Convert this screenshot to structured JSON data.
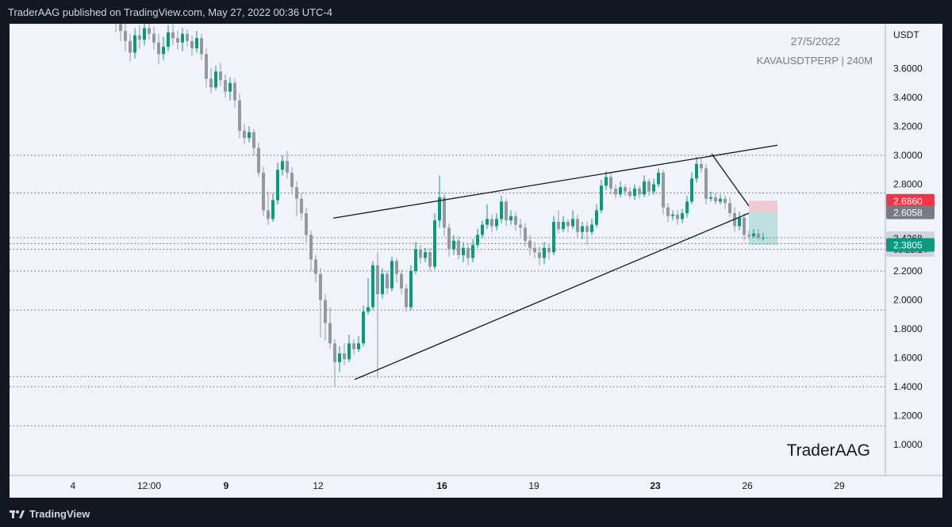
{
  "header": {
    "attribution": "TraderAAG published on TradingView.com, May 27, 2022 00:36 UTC-4"
  },
  "footer": {
    "brand": "TradingView"
  },
  "chart_data": {
    "type": "candlestick",
    "symbol_line": "KAVAUSDTPERP | 240M",
    "date_label": "27/5/2022",
    "watermark": "TraderAAG",
    "currency": "USDT",
    "ylim": [
      0.82,
      3.9
    ],
    "y_ticks": [
      "1.0000",
      "1.2000",
      "1.4000",
      "1.6000",
      "1.8000",
      "2.0000",
      "2.2000",
      "2.4000",
      "2.6000",
      "2.8000",
      "3.0000",
      "3.2000",
      "3.4000",
      "3.6000"
    ],
    "x_ticks": [
      "4",
      "12:00",
      "9",
      "12",
      "16",
      "19",
      "23",
      "26",
      "29"
    ],
    "x_ticks_bold": [
      "9",
      "16",
      "23"
    ],
    "price_labels": [
      {
        "value": 2.686,
        "text": "2.6860",
        "bg": "#f23645",
        "fg": "#ffffff"
      },
      {
        "value": 2.6058,
        "text": "2.6058",
        "bg": "#787b86",
        "fg": "#ffffff"
      },
      {
        "value": 2.4268,
        "text": "2.4268",
        "sub": "03:23:14",
        "bg": "#d1d4dc",
        "fg": "#131722"
      },
      {
        "value": 2.3805,
        "text": "2.3805",
        "bg": "#089981",
        "fg": "#ffffff"
      }
    ],
    "horizontal_levels": [
      3.0,
      2.74,
      2.43,
      2.39,
      2.35,
      2.2,
      1.93,
      1.47,
      1.4,
      1.13
    ],
    "candles": [
      [
        3.98,
        3.91,
        4.05,
        3.85
      ],
      [
        3.91,
        3.86,
        3.97,
        3.79
      ],
      [
        3.86,
        3.79,
        3.93,
        3.72
      ],
      [
        3.79,
        3.71,
        3.84,
        3.65
      ],
      [
        3.71,
        3.83,
        3.88,
        3.67
      ],
      [
        3.83,
        3.8,
        3.9,
        3.74
      ],
      [
        3.8,
        3.88,
        3.95,
        3.76
      ],
      [
        3.88,
        3.84,
        3.92,
        3.8
      ],
      [
        3.84,
        3.78,
        3.89,
        3.73
      ],
      [
        3.78,
        3.7,
        3.84,
        3.63
      ],
      [
        3.7,
        3.75,
        3.82,
        3.66
      ],
      [
        3.75,
        3.85,
        3.9,
        3.72
      ],
      [
        3.85,
        3.81,
        3.91,
        3.76
      ],
      [
        3.81,
        3.78,
        3.86,
        3.73
      ],
      [
        3.78,
        3.84,
        3.88,
        3.72
      ],
      [
        3.84,
        3.79,
        3.87,
        3.75
      ],
      [
        3.79,
        3.74,
        3.83,
        3.69
      ],
      [
        3.74,
        3.81,
        3.86,
        3.71
      ],
      [
        3.81,
        3.7,
        3.84,
        3.66
      ],
      [
        3.7,
        3.53,
        3.74,
        3.47
      ],
      [
        3.53,
        3.47,
        3.6,
        3.43
      ],
      [
        3.47,
        3.58,
        3.62,
        3.45
      ],
      [
        3.58,
        3.52,
        3.64,
        3.48
      ],
      [
        3.52,
        3.44,
        3.56,
        3.4
      ],
      [
        3.44,
        3.5,
        3.54,
        3.38
      ],
      [
        3.5,
        3.38,
        3.53,
        3.33
      ],
      [
        3.38,
        3.17,
        3.43,
        3.12
      ],
      [
        3.17,
        3.12,
        3.22,
        3.08
      ],
      [
        3.12,
        3.16,
        3.2,
        3.09
      ],
      [
        3.16,
        3.05,
        3.18,
        3.0
      ],
      [
        3.05,
        2.88,
        3.09,
        2.85
      ],
      [
        2.88,
        2.62,
        2.92,
        2.58
      ],
      [
        2.62,
        2.56,
        2.75,
        2.52
      ],
      [
        2.56,
        2.69,
        2.74,
        2.54
      ],
      [
        2.69,
        2.9,
        2.95,
        2.66
      ],
      [
        2.9,
        2.96,
        3.0,
        2.86
      ],
      [
        2.96,
        2.88,
        3.03,
        2.84
      ],
      [
        2.88,
        2.78,
        2.92,
        2.73
      ],
      [
        2.78,
        2.7,
        2.82,
        2.58
      ],
      [
        2.7,
        2.6,
        2.74,
        2.55
      ],
      [
        2.6,
        2.45,
        2.64,
        2.4
      ],
      [
        2.45,
        2.28,
        2.48,
        2.2
      ],
      [
        2.28,
        2.18,
        2.31,
        2.12
      ],
      [
        2.18,
        2.0,
        2.22,
        1.74
      ],
      [
        2.0,
        1.84,
        2.04,
        1.72
      ],
      [
        1.84,
        1.7,
        1.95,
        1.66
      ],
      [
        1.7,
        1.57,
        1.73,
        1.4
      ],
      [
        1.57,
        1.63,
        1.68,
        1.5
      ],
      [
        1.63,
        1.59,
        1.7,
        1.55
      ],
      [
        1.59,
        1.7,
        1.76,
        1.57
      ],
      [
        1.7,
        1.66,
        1.73,
        1.62
      ],
      [
        1.66,
        1.7,
        1.75,
        1.64
      ],
      [
        1.7,
        1.92,
        1.96,
        1.68
      ],
      [
        1.92,
        1.95,
        2.15,
        1.9
      ],
      [
        1.95,
        2.24,
        2.27,
        1.93
      ],
      [
        2.24,
        2.04,
        2.33,
        1.46
      ],
      [
        2.04,
        2.18,
        2.22,
        2.01
      ],
      [
        2.18,
        2.08,
        2.2,
        2.04
      ],
      [
        2.08,
        2.27,
        2.3,
        2.06
      ],
      [
        2.27,
        2.18,
        2.29,
        2.12
      ],
      [
        2.18,
        2.08,
        2.21,
        2.04
      ],
      [
        2.08,
        1.95,
        2.11,
        1.92
      ],
      [
        1.95,
        2.2,
        2.24,
        1.93
      ],
      [
        2.2,
        2.35,
        2.4,
        2.18
      ],
      [
        2.35,
        2.29,
        2.38,
        2.25
      ],
      [
        2.29,
        2.33,
        2.36,
        2.26
      ],
      [
        2.33,
        2.23,
        2.36,
        2.2
      ],
      [
        2.23,
        2.55,
        2.6,
        2.21
      ],
      [
        2.55,
        2.71,
        2.86,
        2.5
      ],
      [
        2.71,
        2.5,
        2.74,
        2.44
      ],
      [
        2.5,
        2.35,
        2.53,
        2.3
      ],
      [
        2.35,
        2.41,
        2.45,
        2.31
      ],
      [
        2.41,
        2.31,
        2.44,
        2.28
      ],
      [
        2.31,
        2.36,
        2.4,
        2.26
      ],
      [
        2.36,
        2.29,
        2.39,
        2.24
      ],
      [
        2.29,
        2.38,
        2.42,
        2.26
      ],
      [
        2.38,
        2.45,
        2.49,
        2.36
      ],
      [
        2.45,
        2.52,
        2.55,
        2.43
      ],
      [
        2.52,
        2.56,
        2.66,
        2.49
      ],
      [
        2.56,
        2.51,
        2.59,
        2.47
      ],
      [
        2.51,
        2.56,
        2.6,
        2.48
      ],
      [
        2.56,
        2.68,
        2.72,
        2.53
      ],
      [
        2.68,
        2.55,
        2.7,
        2.51
      ],
      [
        2.55,
        2.58,
        2.62,
        2.52
      ],
      [
        2.58,
        2.52,
        2.61,
        2.48
      ],
      [
        2.52,
        2.5,
        2.56,
        2.44
      ],
      [
        2.5,
        2.41,
        2.53,
        2.37
      ],
      [
        2.41,
        2.36,
        2.45,
        2.31
      ],
      [
        2.36,
        2.33,
        2.4,
        2.29
      ],
      [
        2.33,
        2.29,
        2.37,
        2.24
      ],
      [
        2.29,
        2.36,
        2.4,
        2.25
      ],
      [
        2.36,
        2.33,
        2.39,
        2.28
      ],
      [
        2.33,
        2.54,
        2.58,
        2.31
      ],
      [
        2.54,
        2.49,
        2.62,
        2.46
      ],
      [
        2.49,
        2.54,
        2.58,
        2.47
      ],
      [
        2.54,
        2.51,
        2.56,
        2.47
      ],
      [
        2.51,
        2.56,
        2.62,
        2.49
      ],
      [
        2.56,
        2.47,
        2.59,
        2.43
      ],
      [
        2.47,
        2.51,
        2.54,
        2.42
      ],
      [
        2.51,
        2.47,
        2.54,
        2.38
      ],
      [
        2.47,
        2.52,
        2.56,
        2.45
      ],
      [
        2.52,
        2.62,
        2.66,
        2.5
      ],
      [
        2.62,
        2.79,
        2.83,
        2.6
      ],
      [
        2.79,
        2.85,
        2.89,
        2.76
      ],
      [
        2.85,
        2.77,
        2.88,
        2.73
      ],
      [
        2.77,
        2.73,
        2.8,
        2.7
      ],
      [
        2.73,
        2.78,
        2.82,
        2.71
      ],
      [
        2.78,
        2.75,
        2.8,
        2.72
      ],
      [
        2.75,
        2.72,
        2.78,
        2.7
      ],
      [
        2.72,
        2.77,
        2.8,
        2.69
      ],
      [
        2.77,
        2.73,
        2.79,
        2.7
      ],
      [
        2.73,
        2.82,
        2.86,
        2.71
      ],
      [
        2.82,
        2.75,
        2.84,
        2.72
      ],
      [
        2.75,
        2.8,
        2.84,
        2.73
      ],
      [
        2.8,
        2.88,
        2.91,
        2.78
      ],
      [
        2.88,
        2.64,
        2.9,
        2.59
      ],
      [
        2.64,
        2.58,
        2.67,
        2.54
      ],
      [
        2.58,
        2.59,
        2.62,
        2.55
      ],
      [
        2.59,
        2.56,
        2.62,
        2.52
      ],
      [
        2.56,
        2.6,
        2.63,
        2.53
      ],
      [
        2.6,
        2.68,
        2.72,
        2.57
      ],
      [
        2.68,
        2.84,
        2.88,
        2.66
      ],
      [
        2.84,
        2.94,
        2.99,
        2.81
      ],
      [
        2.94,
        2.91,
        2.98,
        2.88
      ],
      [
        2.91,
        2.7,
        2.94,
        2.66
      ],
      [
        2.7,
        2.71,
        2.75,
        2.68
      ],
      [
        2.71,
        2.68,
        2.74,
        2.66
      ],
      [
        2.68,
        2.7,
        2.73,
        2.66
      ],
      [
        2.7,
        2.67,
        2.72,
        2.63
      ],
      [
        2.67,
        2.6,
        2.71,
        2.57
      ],
      [
        2.6,
        2.51,
        2.64,
        2.47
      ],
      [
        2.51,
        2.57,
        2.61,
        2.48
      ],
      [
        2.57,
        2.45,
        2.6,
        2.41
      ],
      [
        2.45,
        2.44,
        2.48,
        2.42
      ],
      [
        2.44,
        2.46,
        2.49,
        2.43
      ],
      [
        2.46,
        2.43,
        2.49,
        2.41
      ],
      [
        2.43,
        2.43,
        2.46,
        2.41
      ]
    ],
    "trendlines": [
      {
        "x1": 420,
        "p1": 2.566,
        "x2": 980,
        "p2": 3.07,
        "stroke": "#131722"
      },
      {
        "x1": 447,
        "p1": 1.45,
        "x2": 944,
        "p2": 2.6,
        "stroke": "#131722"
      },
      {
        "x1": 897,
        "p1": 3.01,
        "x2": 944,
        "p2": 2.65,
        "stroke": "#131722"
      }
    ],
    "position": {
      "x1": 944,
      "x2": 980,
      "entry": 2.6058,
      "stop": 2.686,
      "target": 2.3805
    }
  }
}
